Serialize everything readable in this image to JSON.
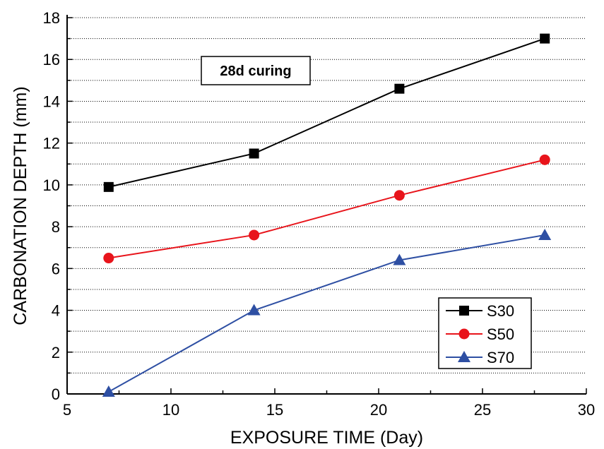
{
  "chart_data": {
    "type": "line",
    "title": "",
    "xlabel": "EXPOSURE TIME (Day)",
    "ylabel": "CARBONATION DEPTH (mm)",
    "xlim": [
      5,
      30
    ],
    "ylim": [
      0,
      18
    ],
    "xticks": [
      5,
      10,
      15,
      20,
      25,
      30
    ],
    "yticks": [
      0,
      2,
      4,
      6,
      8,
      10,
      12,
      14,
      16,
      18
    ],
    "grid": "horizontal dotted",
    "legend_position": "bottom-right",
    "annotation": "28d curing",
    "x": [
      7,
      14,
      21,
      28
    ],
    "series": [
      {
        "name": "S30",
        "color": "#000000",
        "marker": "square",
        "values": [
          9.9,
          11.5,
          14.6,
          17.0
        ]
      },
      {
        "name": "S50",
        "color": "#e8141b",
        "marker": "circle",
        "values": [
          6.5,
          7.6,
          9.5,
          11.2
        ]
      },
      {
        "name": "S70",
        "color": "#2e4fa3",
        "marker": "triangle",
        "values": [
          0.1,
          4.0,
          6.4,
          7.6
        ]
      }
    ]
  }
}
